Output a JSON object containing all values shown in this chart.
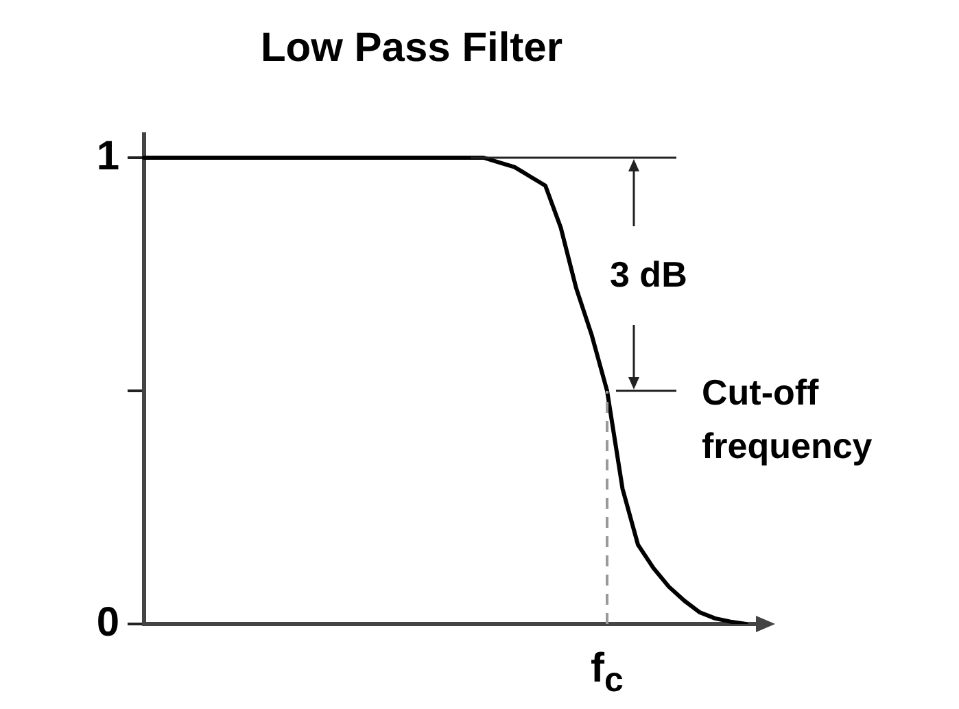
{
  "chart_data": {
    "type": "line",
    "title": "Low Pass Filter",
    "categories": [
      null,
      null,
      null,
      null,
      null,
      null,
      null,
      null,
      null,
      null,
      null,
      null,
      null,
      null,
      null,
      null,
      null,
      null,
      null,
      null,
      null,
      null,
      null,
      null,
      null,
      null,
      null,
      null,
      null,
      null,
      "f$_{c}$",
      null,
      null,
      null,
      null,
      null,
      null,
      null,
      null,
      null,
      null
    ],
    "series": [
      {
        "color": "#000000",
        "values": [
          1,
          1,
          1,
          1,
          1,
          1,
          1,
          1,
          1,
          1,
          1,
          1,
          1,
          1,
          1,
          1,
          1,
          1,
          1,
          1,
          1,
          1,
          1,
          0.99,
          0.98,
          0.96,
          0.94,
          0.85,
          0.72,
          0.62,
          0.5,
          0.29,
          0.17,
          0.12,
          0.08,
          0.05,
          0.025,
          0.012,
          0.005,
          0,
          null
        ]
      }
    ],
    "ylim": [
      0,
      1.05
    ],
    "yticks": [
      0,
      {
        "value": 0.5,
        "label": null
      },
      1
    ],
    "annotations": [
      "3 dB",
      {
        "text": "Cut-off frequency",
        "x": "f$_{c}$",
        "y": 0.5
      }
    ],
    "ref_lines": [
      {
        "axis": "x",
        "value": "f$_{c}$",
        "color": "#999999",
        "line_style": "dashed"
      }
    ],
    "grid": false,
    "legend": false,
    "marker": "none",
    "line_style": "solid"
  }
}
